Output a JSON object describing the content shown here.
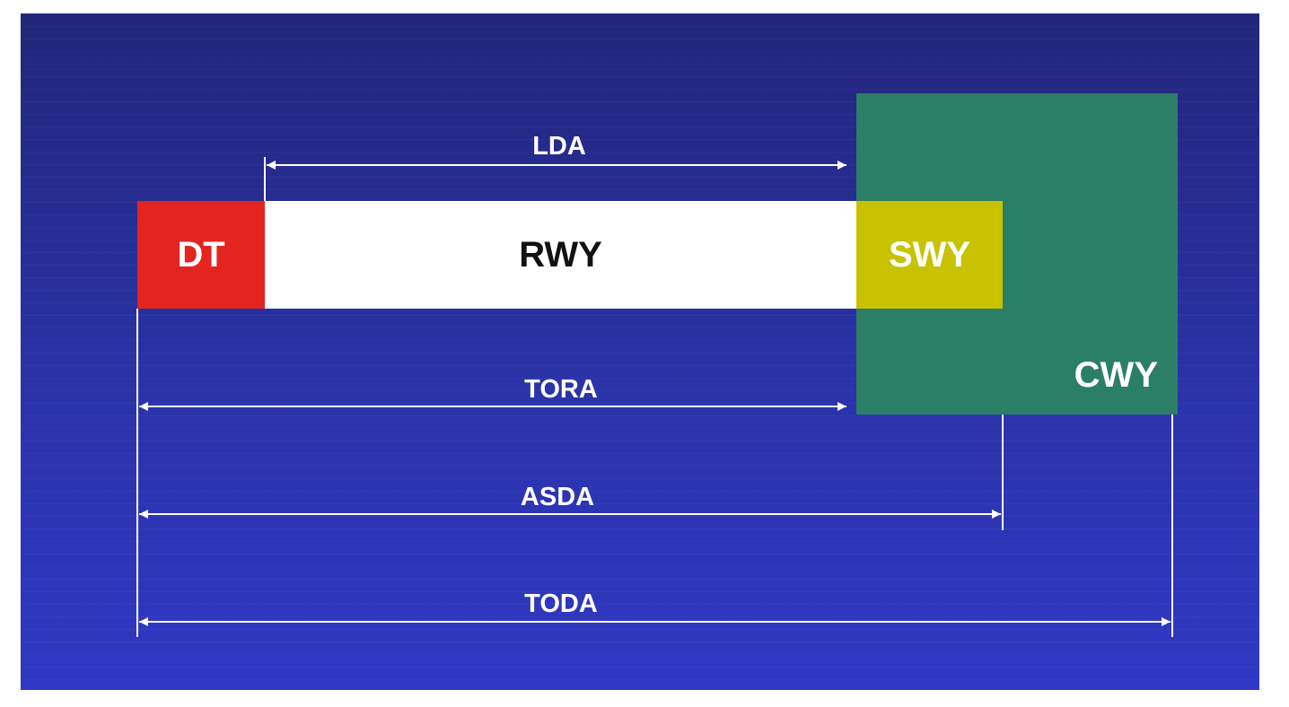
{
  "blocks": {
    "dt": "DT",
    "rwy": "RWY",
    "swy": "SWY",
    "cwy": "CWY"
  },
  "distances": {
    "lda": "LDA",
    "tora": "TORA",
    "asda": "ASDA",
    "toda": "TODA"
  },
  "colors": {
    "background_top": "#22267a",
    "background_bottom": "#3038c4",
    "dt": "#e3241f",
    "rwy": "#ffffff",
    "swy": "#c8c200",
    "cwy": "#2b7f66",
    "lines": "#ffffff"
  }
}
